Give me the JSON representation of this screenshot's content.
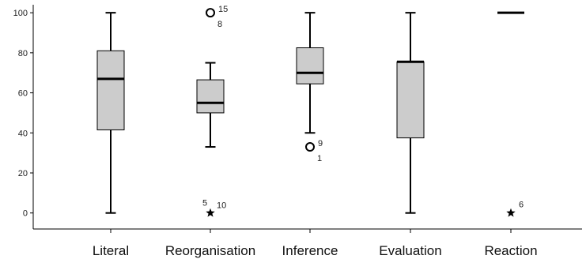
{
  "chart_data": {
    "type": "boxplot",
    "title": "",
    "xlabel": "",
    "ylabel": "",
    "ylim": [
      -8,
      104
    ],
    "yticks": [
      0,
      20,
      40,
      60,
      80,
      100
    ],
    "ytick_labels": [
      "0",
      "20",
      "40",
      "60",
      "80",
      "100"
    ],
    "grid": false,
    "box_color": "#cccccc",
    "categories": [
      "Literal",
      "Reorganisation",
      "Inference",
      "Evaluation",
      "Reaction"
    ],
    "boxes": [
      {
        "category": "Literal",
        "min": 0,
        "q1": 41.5,
        "median": 67,
        "q3": 81,
        "max": 100,
        "outliers": []
      },
      {
        "category": "Reorganisation",
        "min": 33,
        "q1": 50,
        "median": 55,
        "q3": 66.5,
        "max": 75,
        "outliers": [
          {
            "value": 100,
            "marker": "circle",
            "labels": [
              "15",
              "8"
            ]
          },
          {
            "value": 0,
            "marker": "star",
            "labels": [
              "5",
              "10"
            ]
          }
        ]
      },
      {
        "category": "Inference",
        "min": 40,
        "q1": 64.5,
        "median": 70,
        "q3": 82.5,
        "max": 100,
        "outliers": [
          {
            "value": 33,
            "marker": "circle",
            "labels": [
              "9",
              "1"
            ]
          }
        ]
      },
      {
        "category": "Evaluation",
        "min": 0,
        "q1": 37.5,
        "median": 75.5,
        "q3": 75.5,
        "max": 100,
        "outliers": []
      },
      {
        "category": "Reaction",
        "min": 100,
        "q1": 100,
        "median": 100,
        "q3": 100,
        "max": 100,
        "outliers": [
          {
            "value": 0,
            "marker": "star",
            "labels": [
              "6"
            ]
          }
        ]
      }
    ]
  }
}
